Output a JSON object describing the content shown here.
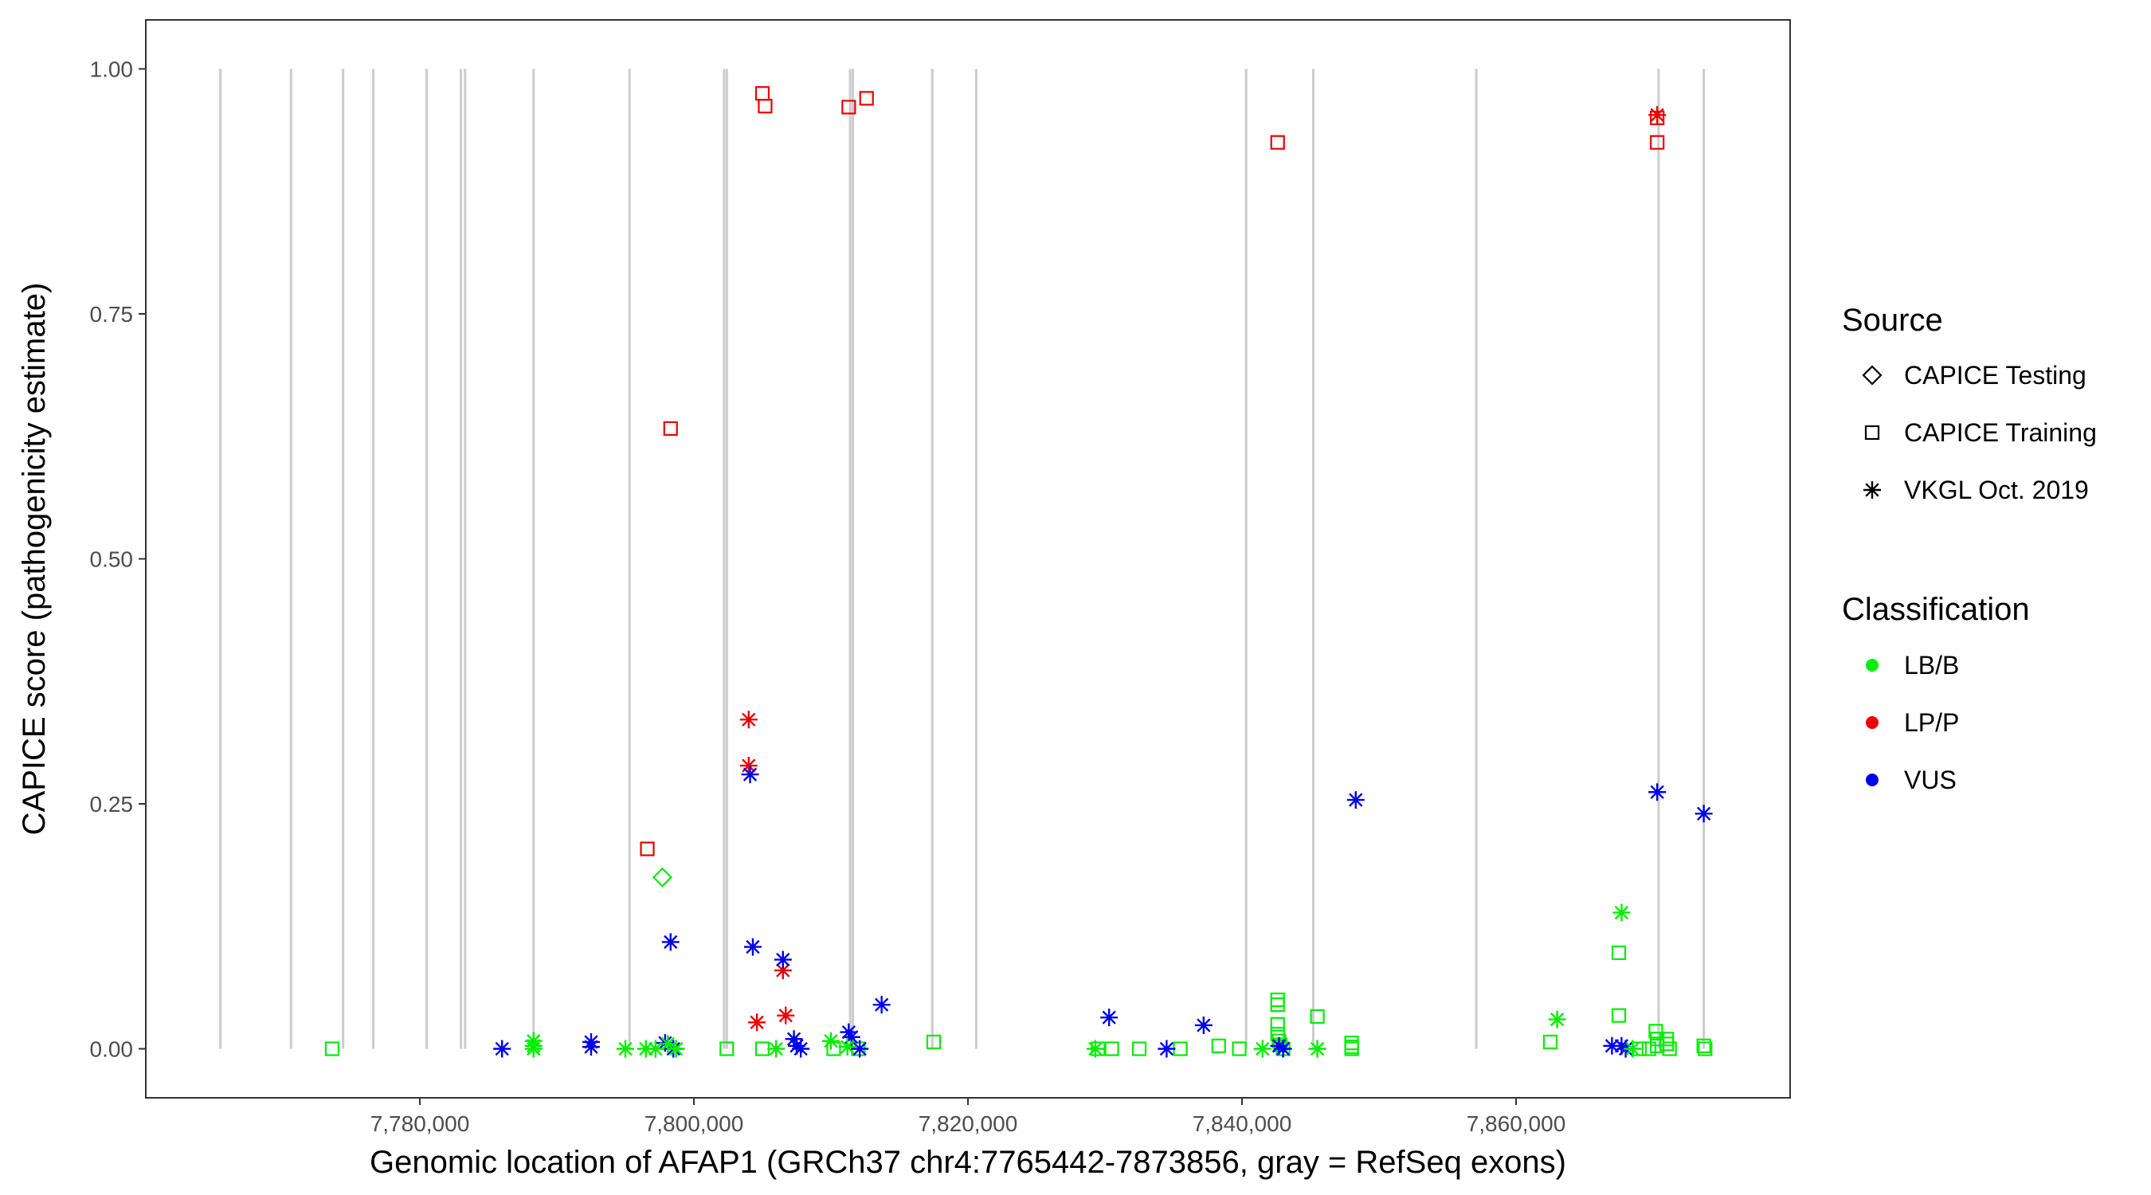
{
  "chart_data": {
    "type": "scatter",
    "xlabel": "Genomic location of AFAP1 (GRCh37 chr4:7765442-7873856, gray = RefSeq exons)",
    "ylabel": "CAPICE score (pathogenicity estimate)",
    "xlim": [
      7760000,
      7880000
    ],
    "ylim": [
      -0.05,
      1.05
    ],
    "x_ticks": [
      7780000,
      7800000,
      7820000,
      7840000,
      7860000
    ],
    "x_tick_labels": [
      "7,780,000",
      "7,800,000",
      "7,820,000",
      "7,840,000",
      "7,860,000"
    ],
    "y_ticks": [
      0,
      0.25,
      0.5,
      0.75,
      1.0
    ],
    "y_tick_labels": [
      "0.00",
      "0.25",
      "0.50",
      "0.75",
      "1.00"
    ],
    "grid": false,
    "exons": [
      7765442,
      7770600,
      7774400,
      7776600,
      7780500,
      7783000,
      7783300,
      7788300,
      7795300,
      7802200,
      7802400,
      7811400,
      7811600,
      7817400,
      7820600,
      7840300,
      7845200,
      7857100,
      7870400,
      7873700
    ],
    "legend_position": "right",
    "colors": {
      "LB/B": "#00ee00",
      "LP/P": "#ee0000",
      "VUS": "#0000ee",
      "exon": "#cccccc"
    },
    "legend": {
      "source_title": "Source",
      "source_items": [
        {
          "shape": "diamond",
          "label": "CAPICE Testing"
        },
        {
          "shape": "square",
          "label": "CAPICE Training"
        },
        {
          "shape": "asterisk",
          "label": "VKGL Oct. 2019"
        }
      ],
      "class_title": "Classification",
      "class_items": [
        {
          "cls": "LB/B",
          "label": "LB/B"
        },
        {
          "cls": "LP/P",
          "label": "LP/P"
        },
        {
          "cls": "VUS",
          "label": "VUS"
        }
      ]
    },
    "series": [
      {
        "name": "CAPICE Testing",
        "cls": "LB/B",
        "shape": "diamond",
        "points": [
          [
            7797700,
            0.175
          ]
        ]
      },
      {
        "name": "CAPICE Training",
        "cls": "LP/P",
        "shape": "square",
        "points": [
          [
            7805000,
            0.975
          ],
          [
            7805200,
            0.962
          ],
          [
            7811300,
            0.961
          ],
          [
            7812600,
            0.97
          ],
          [
            7842600,
            0.925
          ],
          [
            7798300,
            0.633
          ],
          [
            7796600,
            0.204
          ],
          [
            7870300,
            0.95
          ],
          [
            7870300,
            0.925
          ]
        ]
      },
      {
        "name": "CAPICE Training",
        "cls": "LB/B",
        "shape": "square",
        "points": [
          [
            7773600,
            0.0
          ],
          [
            7802400,
            0.0
          ],
          [
            7805000,
            0.0
          ],
          [
            7810200,
            0.0
          ],
          [
            7812000,
            0.0
          ],
          [
            7817500,
            0.007
          ],
          [
            7829500,
            0.0
          ],
          [
            7830500,
            0.0
          ],
          [
            7832500,
            0.0
          ],
          [
            7835500,
            0.0
          ],
          [
            7838300,
            0.003
          ],
          [
            7839800,
            0.0
          ],
          [
            7842600,
            0.05
          ],
          [
            7842600,
            0.045
          ],
          [
            7842600,
            0.025
          ],
          [
            7842600,
            0.015
          ],
          [
            7842700,
            0.008
          ],
          [
            7842800,
            0.004
          ],
          [
            7843000,
            0.0
          ],
          [
            7845500,
            0.033
          ],
          [
            7848000,
            0.006
          ],
          [
            7848000,
            0.002
          ],
          [
            7848000,
            0.0
          ],
          [
            7862500,
            0.007
          ],
          [
            7867500,
            0.098
          ],
          [
            7867500,
            0.034
          ],
          [
            7869000,
            0.0
          ],
          [
            7869700,
            0.0
          ],
          [
            7870200,
            0.018
          ],
          [
            7870300,
            0.01
          ],
          [
            7870300,
            0.003
          ],
          [
            7871000,
            0.01
          ],
          [
            7871000,
            0.005
          ],
          [
            7871200,
            0.0
          ],
          [
            7873700,
            0.003
          ],
          [
            7873800,
            0.0
          ]
        ]
      },
      {
        "name": "VKGL Oct. 2019",
        "cls": "LP/P",
        "shape": "asterisk",
        "points": [
          [
            7804000,
            0.336
          ],
          [
            7804000,
            0.289
          ],
          [
            7806500,
            0.08
          ],
          [
            7806700,
            0.034
          ],
          [
            7804600,
            0.027
          ],
          [
            7870300,
            0.953
          ]
        ]
      },
      {
        "name": "VKGL Oct. 2019",
        "cls": "VUS",
        "shape": "asterisk",
        "points": [
          [
            7786000,
            0.0
          ],
          [
            7792500,
            0.007
          ],
          [
            7792500,
            0.002
          ],
          [
            7797900,
            0.006
          ],
          [
            7798300,
            0.109
          ],
          [
            7798500,
            0.0
          ],
          [
            7804100,
            0.28
          ],
          [
            7804300,
            0.104
          ],
          [
            7806500,
            0.091
          ],
          [
            7807300,
            0.01
          ],
          [
            7807500,
            0.003
          ],
          [
            7807800,
            0.0
          ],
          [
            7811300,
            0.017
          ],
          [
            7811500,
            0.012
          ],
          [
            7812100,
            0.0
          ],
          [
            7813700,
            0.045
          ],
          [
            7830300,
            0.032
          ],
          [
            7834500,
            0.0
          ],
          [
            7837200,
            0.024
          ],
          [
            7842700,
            0.003
          ],
          [
            7843000,
            0.0
          ],
          [
            7848300,
            0.254
          ],
          [
            7867000,
            0.003
          ],
          [
            7867700,
            0.003
          ],
          [
            7868000,
            0.0
          ],
          [
            7870300,
            0.262
          ],
          [
            7873700,
            0.24
          ]
        ]
      },
      {
        "name": "VKGL Oct. 2019",
        "cls": "LB/B",
        "shape": "asterisk",
        "points": [
          [
            7788300,
            0.008
          ],
          [
            7788300,
            0.003
          ],
          [
            7788300,
            0.0
          ],
          [
            7795000,
            0.0
          ],
          [
            7796500,
            0.0
          ],
          [
            7797200,
            0.0
          ],
          [
            7798100,
            0.005
          ],
          [
            7798700,
            0.0
          ],
          [
            7806000,
            0.0
          ],
          [
            7810000,
            0.008
          ],
          [
            7811200,
            0.002
          ],
          [
            7829300,
            0.0
          ],
          [
            7841500,
            0.0
          ],
          [
            7845500,
            0.0
          ],
          [
            7863000,
            0.03
          ],
          [
            7867700,
            0.139
          ],
          [
            7868500,
            0.0
          ]
        ]
      }
    ]
  }
}
